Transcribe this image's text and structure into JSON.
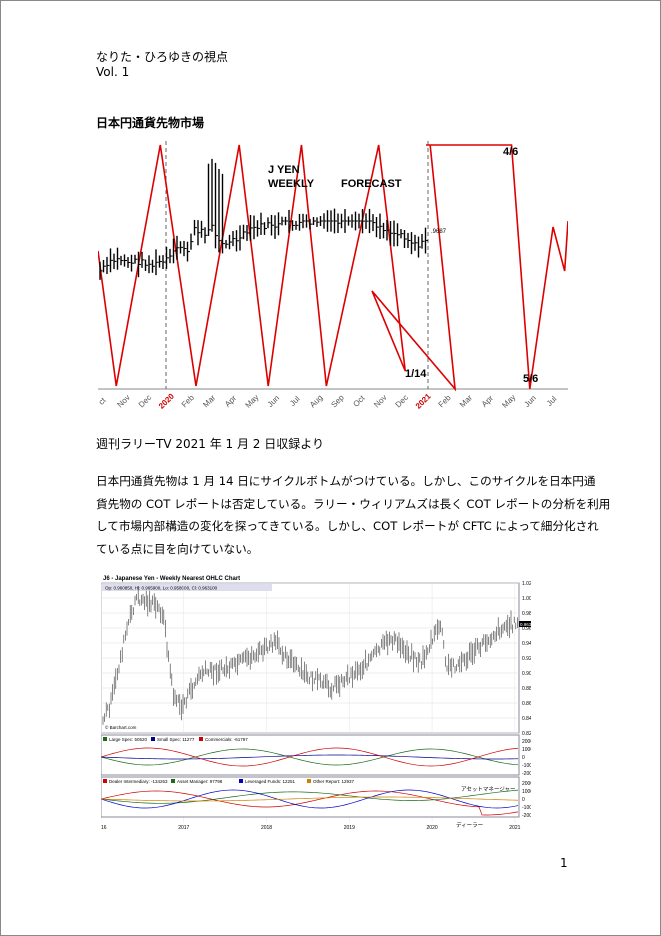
{
  "header": {
    "title": "なりた・ひろゆきの視点",
    "volume": "Vol. 1"
  },
  "heading": "日本円通貨先物市場",
  "figure1": {
    "title_lines": [
      "J YEN",
      "WEEKLY",
      "FORECAST"
    ],
    "annotations": [
      "4/6",
      "1/14",
      "5/6"
    ],
    "price_label": ".9687",
    "x_labels": [
      "ct",
      "Nov",
      "Dec",
      "2020",
      "Feb",
      "Mar",
      "Apr",
      "May",
      "Jun",
      "Jul",
      "Aug",
      "Sep",
      "Oct",
      "Nov",
      "Dec",
      "2021",
      "Feb",
      "Mar",
      "Apr",
      "May",
      "Jun",
      "Jul"
    ]
  },
  "caption": "週刊ラリーTV 2021 年 1 月 2 日収録より",
  "paragraph": [
    "日本円通貨先物は 1 月 14 日にサイクルボトムがつけている。しかし、このサイクルを日本円通",
    "貨先物の COT レポートは否定している。ラリー・ウィリアムズは長く COT レポートの分析を利用",
    "して市場内部構造の変化を探ってきている。しかし、COT レポートが CFTC によって細分化され",
    "ている点に目を向けていない。"
  ],
  "figure2": {
    "title": "J6 - Japanese Yen - Weekly Nearest OHLC Chart",
    "ohlc": "Op: 0.960850, Hi: 0.965900, Lo: 0.958000, Cl: 0.963100",
    "last": "0.963100",
    "credit": "© Barchart.com",
    "price_labels": [
      "1.020000",
      "1.000000",
      "0.980000",
      "0.960000",
      "0.940000",
      "0.920000",
      "0.900000",
      "0.880000",
      "0.860000",
      "0.840000",
      "0.820000"
    ],
    "cot_legend": [
      "Large Spec: 50520",
      "Small Spec: 11277",
      "Commercials: -61797"
    ],
    "cot_labels": [
      "200000",
      "100000",
      "0",
      "-100000",
      "-200000"
    ],
    "tff_legend": [
      "Dealer Intermediary: -134263",
      "Asset Manager: 97798",
      "Leveraged Funds: 12251",
      "Other Report: 12937"
    ],
    "tff_labels": [
      "200000",
      "100000",
      "0",
      "-100000",
      "-200000"
    ],
    "notes": [
      "アセットマネージャー",
      "ディーラー"
    ],
    "x_labels": [
      "2016",
      "2017",
      "2018",
      "2019",
      "2020",
      "2021"
    ]
  },
  "page_number": "1"
}
